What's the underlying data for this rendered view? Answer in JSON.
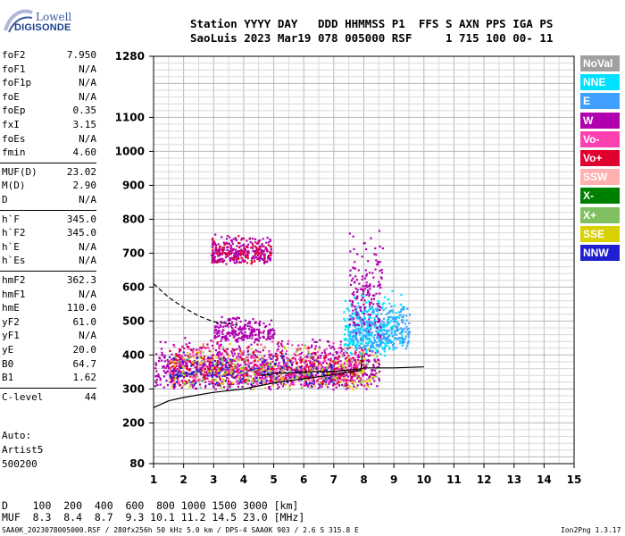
{
  "logo": {
    "line1": "Lowell",
    "line2": "DIGISONDE"
  },
  "header": {
    "line1": "Station YYYY DAY   DDD HHMMSS P1  FFS S AXN PPS IGA PS",
    "line2": "SaoLuis 2023 Mar19 078 005000 RSF     1 715 100 00- 11"
  },
  "params": [
    {
      "label": "foF2",
      "value": "7.950"
    },
    {
      "label": "foF1",
      "value": "N/A"
    },
    {
      "label": "foF1p",
      "value": "N/A"
    },
    {
      "label": "foE",
      "value": "N/A"
    },
    {
      "label": "foEp",
      "value": "0.35"
    },
    {
      "label": "fxI",
      "value": "3.15"
    },
    {
      "label": "foEs",
      "value": "N/A"
    },
    {
      "label": "fmin",
      "value": "4.60"
    },
    {
      "label": "MUF(D)",
      "value": "23.02"
    },
    {
      "label": "M(D)",
      "value": "2.90"
    },
    {
      "label": "D",
      "value": "N/A"
    },
    {
      "label": "h`F",
      "value": "345.0"
    },
    {
      "label": "h`F2",
      "value": "345.0"
    },
    {
      "label": "h`E",
      "value": "N/A"
    },
    {
      "label": "h`Es",
      "value": "N/A"
    },
    {
      "label": "hmF2",
      "value": "362.3"
    },
    {
      "label": "hmF1",
      "value": "N/A"
    },
    {
      "label": "hmE",
      "value": "110.0"
    },
    {
      "label": "yF2",
      "value": "61.0"
    },
    {
      "label": "yF1",
      "value": "N/A"
    },
    {
      "label": "yE",
      "value": "20.0"
    },
    {
      "label": "B0",
      "value": "64.7"
    },
    {
      "label": "B1",
      "value": "1.62"
    },
    {
      "label": "C-level",
      "value": "44"
    }
  ],
  "auto": {
    "label": "Auto:",
    "artist": "Artist5",
    "version": "500200"
  },
  "legend": [
    {
      "label": "NoVal",
      "color": "#a0a0a0"
    },
    {
      "label": "NNE",
      "color": "#00e0ff"
    },
    {
      "label": "E",
      "color": "#40a0ff"
    },
    {
      "label": "W",
      "color": "#b000b0"
    },
    {
      "label": "Vo-",
      "color": "#ff40b0"
    },
    {
      "label": "Vo+",
      "color": "#e00030"
    },
    {
      "label": "SSW",
      "color": "#ffb0b0"
    },
    {
      "label": "X-",
      "color": "#008000"
    },
    {
      "label": "X+",
      "color": "#80c060"
    },
    {
      "label": "SSE",
      "color": "#d8d000"
    },
    {
      "label": "NNW",
      "color": "#2020d0"
    }
  ],
  "bottom": {
    "d_line": "D    100  200  400  600  800 1000 1500 3000 [km]",
    "muf_line": "MUF  8.3  8.4  8.7  9.3 10.1 11.2 14.5 23.0 [MHz]"
  },
  "footer": {
    "left": "SAA0K_2023078005000.RSF / 280fx256h 50 kHz 5.0 km / DPS-4 SAA0K 903 / 2.6 S 315.8 E",
    "right": "Ion2Png 1.3.17"
  },
  "chart_data": {
    "type": "scatter",
    "title": "",
    "xlabel": "",
    "ylabel": "",
    "xlim": [
      1,
      15
    ],
    "ylim": [
      80,
      1280
    ],
    "x_ticks": [
      1,
      2,
      3,
      4,
      5,
      6,
      7,
      8,
      9,
      10,
      11,
      12,
      13,
      14,
      15
    ],
    "y_ticks": [
      80,
      200,
      300,
      400,
      500,
      600,
      700,
      800,
      900,
      1000,
      1100,
      1280
    ],
    "grid": true,
    "echo_regions": [
      {
        "label": "W",
        "color": "#b000b0",
        "f_range": [
          1.0,
          8.5
        ],
        "h_range": [
          300,
          460
        ],
        "count": 900
      },
      {
        "label": "Vo-",
        "color": "#ff40b0",
        "f_range": [
          1.5,
          8.0
        ],
        "h_range": [
          310,
          450
        ],
        "count": 450
      },
      {
        "label": "Vo+",
        "color": "#e00030",
        "f_range": [
          1.5,
          8.0
        ],
        "h_range": [
          310,
          450
        ],
        "count": 350
      },
      {
        "label": "NNW",
        "color": "#2020d0",
        "f_range": [
          1.5,
          7.0
        ],
        "h_range": [
          310,
          420
        ],
        "count": 200
      },
      {
        "label": "SSE",
        "color": "#d8d000",
        "f_range": [
          1.5,
          8.5
        ],
        "h_range": [
          300,
          440
        ],
        "count": 160
      },
      {
        "label": "X+",
        "color": "#80c060",
        "f_range": [
          1.5,
          8.5
        ],
        "h_range": [
          300,
          440
        ],
        "count": 100
      },
      {
        "label": "NNE",
        "color": "#00e0ff",
        "f_range": [
          7.3,
          9.3
        ],
        "h_range": [
          400,
          600
        ],
        "count": 320
      },
      {
        "label": "E",
        "color": "#40a0ff",
        "f_range": [
          7.5,
          9.5
        ],
        "h_range": [
          420,
          560
        ],
        "count": 260
      },
      {
        "label": "W",
        "color": "#b000b0",
        "f_range": [
          2.9,
          4.9
        ],
        "h_range": [
          670,
          760
        ],
        "count": 260
      },
      {
        "label": "Vo+",
        "color": "#e00030",
        "f_range": [
          2.9,
          4.9
        ],
        "h_range": [
          670,
          760
        ],
        "count": 90
      },
      {
        "label": "W",
        "color": "#b000b0",
        "f_range": [
          7.5,
          8.6
        ],
        "h_range": [
          450,
          800
        ],
        "count": 160
      },
      {
        "label": "W",
        "color": "#b000b0",
        "f_range": [
          3.0,
          5.0
        ],
        "h_range": [
          440,
          520
        ],
        "count": 220
      }
    ],
    "lines": [
      {
        "name": "trace",
        "style": "solid",
        "points": [
          [
            1.0,
            245
          ],
          [
            1.5,
            265
          ],
          [
            2.0,
            275
          ],
          [
            3.0,
            290
          ],
          [
            4.0,
            300
          ],
          [
            5.0,
            318
          ],
          [
            6.0,
            330
          ],
          [
            7.0,
            342
          ],
          [
            7.9,
            355
          ],
          [
            7.95,
            400
          ]
        ]
      },
      {
        "name": "trace-upper",
        "style": "solid",
        "points": [
          [
            4.6,
            340
          ],
          [
            5.0,
            345
          ],
          [
            6.0,
            350
          ],
          [
            7.0,
            352
          ],
          [
            7.8,
            358
          ],
          [
            8.0,
            362
          ],
          [
            9.0,
            362
          ],
          [
            10.0,
            365
          ]
        ]
      },
      {
        "name": "profile",
        "style": "dashed",
        "points": [
          [
            1.0,
            610
          ],
          [
            1.5,
            570
          ],
          [
            2.0,
            540
          ],
          [
            2.5,
            515
          ],
          [
            3.0,
            498
          ],
          [
            3.5,
            492
          ],
          [
            3.8,
            488
          ]
        ]
      }
    ]
  }
}
